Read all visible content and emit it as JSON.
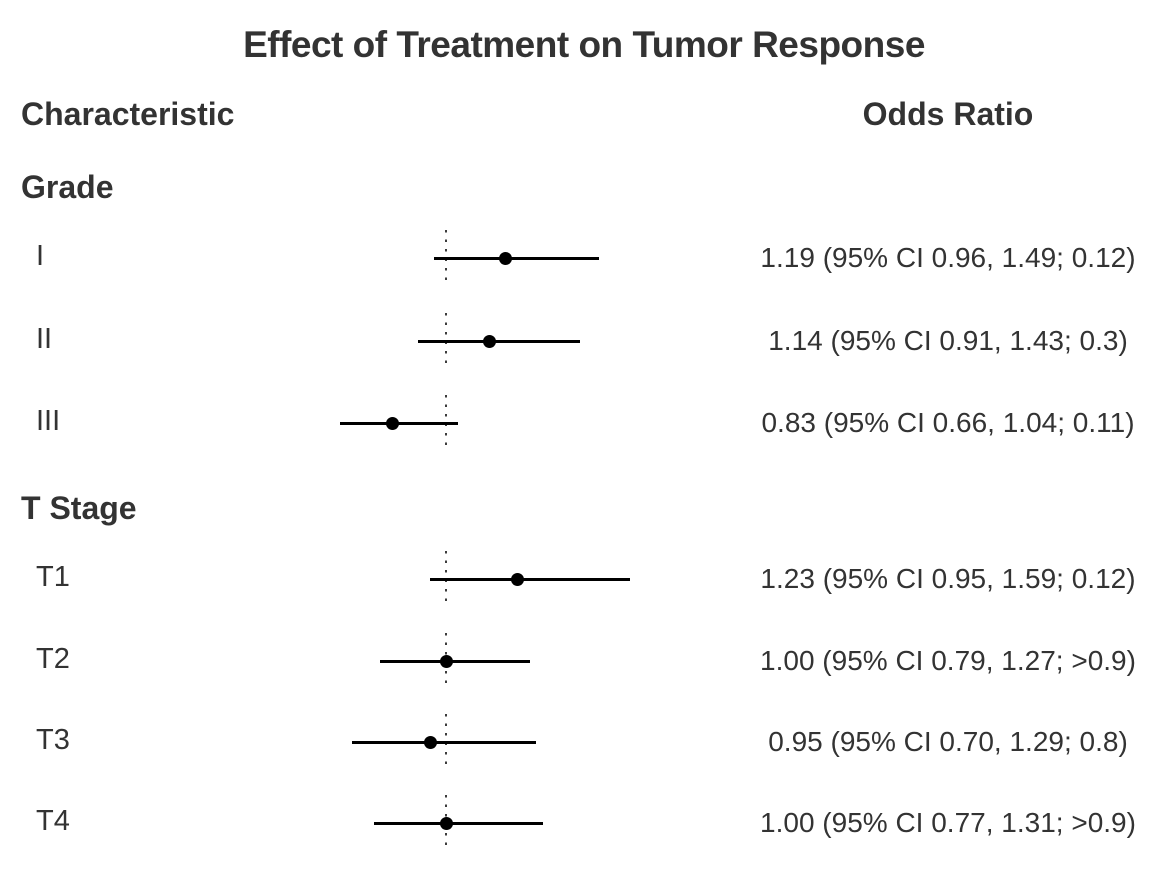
{
  "title": "Effect of Treatment on Tumor Response",
  "columns": {
    "characteristic": "Characteristic",
    "odds_ratio": "Odds Ratio"
  },
  "colors": {
    "text": "#333333",
    "plot_line": "#000000",
    "marker": "#000000",
    "null_line": "#3c3c3c",
    "background": "#ffffff"
  },
  "chart_data": {
    "type": "forest",
    "title": "Effect of Treatment on Tumor Response",
    "value_label": "Odds Ratio",
    "null_value": 1.0,
    "scale": "linear",
    "x_range_implied": [
      0.6,
      1.66
    ],
    "axis_ticks_shown": false,
    "grid": false,
    "sections": [
      {
        "label": "Grade",
        "rows": [
          {
            "label": "I",
            "or": 1.19,
            "ci_low": 0.96,
            "ci_high": 1.49,
            "p": "0.12",
            "display": "1.19 (95% CI 0.96, 1.49; 0.12)"
          },
          {
            "label": "II",
            "or": 1.14,
            "ci_low": 0.91,
            "ci_high": 1.43,
            "p": "0.3",
            "display": "1.14 (95% CI 0.91, 1.43; 0.3)"
          },
          {
            "label": "III",
            "or": 0.83,
            "ci_low": 0.66,
            "ci_high": 1.04,
            "p": "0.11",
            "display": "0.83 (95% CI 0.66, 1.04; 0.11)"
          }
        ]
      },
      {
        "label": "T Stage",
        "rows": [
          {
            "label": "T1",
            "or": 1.23,
            "ci_low": 0.95,
            "ci_high": 1.59,
            "p": "0.12",
            "display": "1.23 (95% CI 0.95, 1.59; 0.12)"
          },
          {
            "label": "T2",
            "or": 1.0,
            "ci_low": 0.79,
            "ci_high": 1.27,
            "p": ">0.9",
            "display": "1.00 (95% CI 0.79, 1.27; >0.9)"
          },
          {
            "label": "T3",
            "or": 0.95,
            "ci_low": 0.7,
            "ci_high": 1.29,
            "p": "0.8",
            "display": "0.95 (95% CI 0.70, 1.29; 0.8)"
          },
          {
            "label": "T4",
            "or": 1.0,
            "ci_low": 0.77,
            "ci_high": 1.31,
            "p": ">0.9",
            "display": "1.00 (95% CI 0.77, 1.31; >0.9)"
          }
        ]
      }
    ]
  }
}
